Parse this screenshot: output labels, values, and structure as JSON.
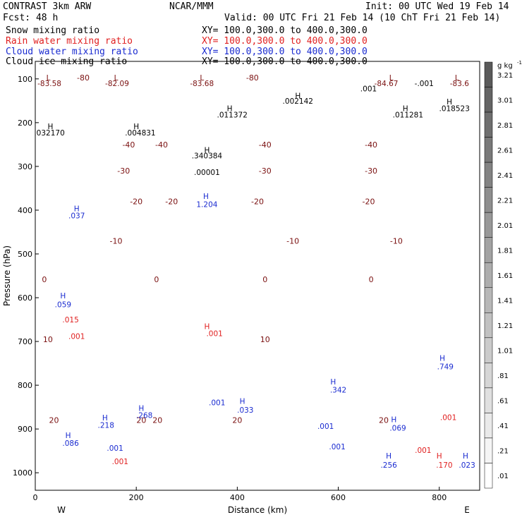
{
  "header": {
    "left_line1": "CONTRAST  3km ARW",
    "center_line1": "NCAR/MMM",
    "right_line1": "Init: 00 UTC Wed 19 Feb 14",
    "left_line2": "Fcst:   48 h",
    "right_line2": "Valid: 00 UTC Fri 21 Feb 14 (10 ChT Fri 21 Feb 14)"
  },
  "fields": [
    {
      "name": "Snow mixing ratio",
      "xy": "XY= 100.0,300.0 to 400.0,300.0",
      "color": "#000000"
    },
    {
      "name": "Rain water mixing ratio",
      "xy": "XY= 100.0,300.0 to 400.0,300.0",
      "color": "#e02020"
    },
    {
      "name": "Cloud water mixing ratio",
      "xy": "XY= 100.0,300.0 to 400.0,300.0",
      "color": "#1a2bd0"
    },
    {
      "name": "Cloud ice mixing ratio",
      "xy": "XY= 100.0,300.0 to 400.0,300.0",
      "color": "#000000"
    }
  ],
  "chart_data": {
    "type": "contour",
    "xlabel": "Distance (km)",
    "ylabel": "Pressure (hPa)",
    "xlim": [
      0,
      880
    ],
    "ylim": [
      1040,
      60
    ],
    "x_ticks": [
      0,
      200,
      400,
      600,
      800
    ],
    "y_ticks": [
      100,
      200,
      300,
      400,
      500,
      600,
      700,
      800,
      900,
      1000
    ],
    "x_end_labels": {
      "left": "W",
      "right": "E"
    },
    "colorbar": {
      "unit": "g kg",
      "unit_exp": "-1",
      "levels": [
        "3.21",
        "3.01",
        "2.81",
        "2.61",
        "2.41",
        "2.21",
        "2.01",
        "1.81",
        "1.61",
        "1.41",
        "1.21",
        "1.01",
        ".81",
        ".61",
        ".41",
        ".21",
        ".01"
      ]
    },
    "temperature_contours": [
      {
        "label": "-80",
        "pressure": 97,
        "x_label_km": 95
      },
      {
        "label": "-80",
        "pressure": 97,
        "x_label_km": 430
      },
      {
        "label": "-40",
        "pressure": 250,
        "x_label_km": 185
      },
      {
        "label": "-40",
        "pressure": 250,
        "x_label_km": 250
      },
      {
        "label": "-40",
        "pressure": 250,
        "x_label_km": 455
      },
      {
        "label": "-40",
        "pressure": 250,
        "x_label_km": 665
      },
      {
        "label": "-30",
        "pressure": 310,
        "x_label_km": 175
      },
      {
        "label": "-30",
        "pressure": 310,
        "x_label_km": 455
      },
      {
        "label": "-30",
        "pressure": 310,
        "x_label_km": 665
      },
      {
        "label": "-20",
        "pressure": 380,
        "x_label_km": 200
      },
      {
        "label": "-20",
        "pressure": 380,
        "x_label_km": 270
      },
      {
        "label": "-20",
        "pressure": 380,
        "x_label_km": 440
      },
      {
        "label": "-20",
        "pressure": 380,
        "x_label_km": 660
      },
      {
        "label": "-10",
        "pressure": 470,
        "x_label_km": 160
      },
      {
        "label": "-10",
        "pressure": 470,
        "x_label_km": 510
      },
      {
        "label": "-10",
        "pressure": 470,
        "x_label_km": 715
      },
      {
        "label": "0",
        "pressure": 558,
        "x_label_km": 18
      },
      {
        "label": "0",
        "pressure": 558,
        "x_label_km": 240
      },
      {
        "label": "0",
        "pressure": 558,
        "x_label_km": 455
      },
      {
        "label": "0",
        "pressure": 558,
        "x_label_km": 665
      },
      {
        "label": "10",
        "pressure": 695,
        "x_label_km": 25
      },
      {
        "label": "10",
        "pressure": 695,
        "x_label_km": 455
      },
      {
        "label": "20",
        "pressure": 880,
        "x_label_km": 37
      },
      {
        "label": "20",
        "pressure": 880,
        "x_label_km": 210
      },
      {
        "label": "20",
        "pressure": 880,
        "x_label_km": 242
      },
      {
        "label": "20",
        "pressure": 880,
        "x_label_km": 400
      },
      {
        "label": "20",
        "pressure": 880,
        "x_label_km": 690
      }
    ],
    "annotations": [
      {
        "text": "-83.58",
        "x": 28,
        "p": 110,
        "color": "#7a1010"
      },
      {
        "text": "L",
        "x": 26,
        "p": 97,
        "color": "#7a1010"
      },
      {
        "text": "L",
        "x": 160,
        "p": 97,
        "color": "#7a1010"
      },
      {
        "text": "-82.09",
        "x": 162,
        "p": 110,
        "color": "#7a1010"
      },
      {
        "text": "L",
        "x": 330,
        "p": 97,
        "color": "#7a1010"
      },
      {
        "text": "-83.68",
        "x": 330,
        "p": 110,
        "color": "#7a1010"
      },
      {
        "text": "L",
        "x": 705,
        "p": 97,
        "color": "#7a1010"
      },
      {
        "text": "-84.67",
        "x": 695,
        "p": 110,
        "color": "#7a1010"
      },
      {
        "text": "L",
        "x": 835,
        "p": 97,
        "color": "#7a1010"
      },
      {
        "text": "-83.6",
        "x": 840,
        "p": 110,
        "color": "#7a1010"
      },
      {
        "text": ".001",
        "x": 660,
        "p": 122,
        "color": "#000000"
      },
      {
        "text": "-.001",
        "x": 770,
        "p": 110,
        "color": "#000000"
      },
      {
        "text": "H",
        "x": 520,
        "p": 138,
        "color": "#000000"
      },
      {
        "text": ".002142",
        "x": 520,
        "p": 150,
        "color": "#000000"
      },
      {
        "text": "H",
        "x": 385,
        "p": 167,
        "color": "#000000"
      },
      {
        "text": ".011372",
        "x": 390,
        "p": 182,
        "color": "#000000"
      },
      {
        "text": "H",
        "x": 733,
        "p": 167,
        "color": "#000000"
      },
      {
        "text": ".011281",
        "x": 738,
        "p": 182,
        "color": "#000000"
      },
      {
        "text": "H",
        "x": 820,
        "p": 152,
        "color": "#000000"
      },
      {
        "text": ".018523",
        "x": 830,
        "p": 167,
        "color": "#000000"
      },
      {
        "text": "H",
        "x": 30,
        "p": 208,
        "color": "#000000"
      },
      {
        "text": ".032170",
        "x": 28,
        "p": 223,
        "color": "#000000"
      },
      {
        "text": "H",
        "x": 200,
        "p": 208,
        "color": "#000000"
      },
      {
        "text": ".004831",
        "x": 208,
        "p": 223,
        "color": "#000000"
      },
      {
        "text": "H",
        "x": 340,
        "p": 262,
        "color": "#000000"
      },
      {
        "text": ".340384",
        "x": 340,
        "p": 275,
        "color": "#000000"
      },
      {
        "text": ".00001",
        "x": 340,
        "p": 313,
        "color": "#000000"
      },
      {
        "text": "H",
        "x": 338,
        "p": 368,
        "color": "#1a2bd0"
      },
      {
        "text": "1.204",
        "x": 340,
        "p": 386,
        "color": "#1a2bd0"
      },
      {
        "text": "H",
        "x": 82,
        "p": 396,
        "color": "#1a2bd0"
      },
      {
        "text": ".037",
        "x": 82,
        "p": 412,
        "color": "#1a2bd0"
      },
      {
        "text": "H",
        "x": 55,
        "p": 595,
        "color": "#1a2bd0"
      },
      {
        "text": ".059",
        "x": 55,
        "p": 615,
        "color": "#1a2bd0"
      },
      {
        "text": ".015",
        "x": 70,
        "p": 650,
        "color": "#e02020"
      },
      {
        "text": ".001",
        "x": 82,
        "p": 688,
        "color": "#e02020"
      },
      {
        "text": ".001",
        "x": 355,
        "p": 681,
        "color": "#e02020"
      },
      {
        "text": "H",
        "x": 340,
        "p": 665,
        "color": "#e02020"
      },
      {
        "text": ".001",
        "x": 360,
        "p": 839,
        "color": "#1a2bd0"
      },
      {
        "text": "H",
        "x": 410,
        "p": 836,
        "color": "#1a2bd0"
      },
      {
        "text": ".033",
        "x": 416,
        "p": 856,
        "color": "#1a2bd0"
      },
      {
        "text": "H",
        "x": 590,
        "p": 792,
        "color": "#1a2bd0"
      },
      {
        "text": ".342",
        "x": 600,
        "p": 810,
        "color": "#1a2bd0"
      },
      {
        "text": ".001",
        "x": 575,
        "p": 893,
        "color": "#1a2bd0"
      },
      {
        "text": ".001",
        "x": 598,
        "p": 940,
        "color": "#1a2bd0"
      },
      {
        "text": "H",
        "x": 210,
        "p": 852,
        "color": "#1a2bd0"
      },
      {
        "text": ".268",
        "x": 216,
        "p": 868,
        "color": "#1a2bd0"
      },
      {
        "text": "H",
        "x": 138,
        "p": 874,
        "color": "#1a2bd0"
      },
      {
        "text": ".218",
        "x": 140,
        "p": 891,
        "color": "#1a2bd0"
      },
      {
        "text": ".001",
        "x": 158,
        "p": 943,
        "color": "#1a2bd0"
      },
      {
        "text": ".001",
        "x": 168,
        "p": 974,
        "color": "#e02020"
      },
      {
        "text": "H",
        "x": 65,
        "p": 914,
        "color": "#1a2bd0"
      },
      {
        "text": ".086",
        "x": 70,
        "p": 932,
        "color": "#1a2bd0"
      },
      {
        "text": "H",
        "x": 700,
        "p": 961,
        "color": "#1a2bd0"
      },
      {
        "text": ".256",
        "x": 700,
        "p": 982,
        "color": "#1a2bd0"
      },
      {
        "text": "H",
        "x": 710,
        "p": 878,
        "color": "#1a2bd0"
      },
      {
        "text": ".069",
        "x": 718,
        "p": 897,
        "color": "#1a2bd0"
      },
      {
        "text": ".001",
        "x": 768,
        "p": 948,
        "color": "#e02020"
      },
      {
        "text": "H",
        "x": 806,
        "p": 738,
        "color": "#1a2bd0"
      },
      {
        "text": ".749",
        "x": 812,
        "p": 757,
        "color": "#1a2bd0"
      },
      {
        "text": ".001",
        "x": 818,
        "p": 873,
        "color": "#e02020"
      },
      {
        "text": "H",
        "x": 800,
        "p": 961,
        "color": "#e02020"
      },
      {
        "text": ".170",
        "x": 810,
        "p": 982,
        "color": "#e02020"
      },
      {
        "text": "H",
        "x": 852,
        "p": 961,
        "color": "#1a2bd0"
      },
      {
        "text": ".023",
        "x": 855,
        "p": 982,
        "color": "#1a2bd0"
      }
    ]
  }
}
